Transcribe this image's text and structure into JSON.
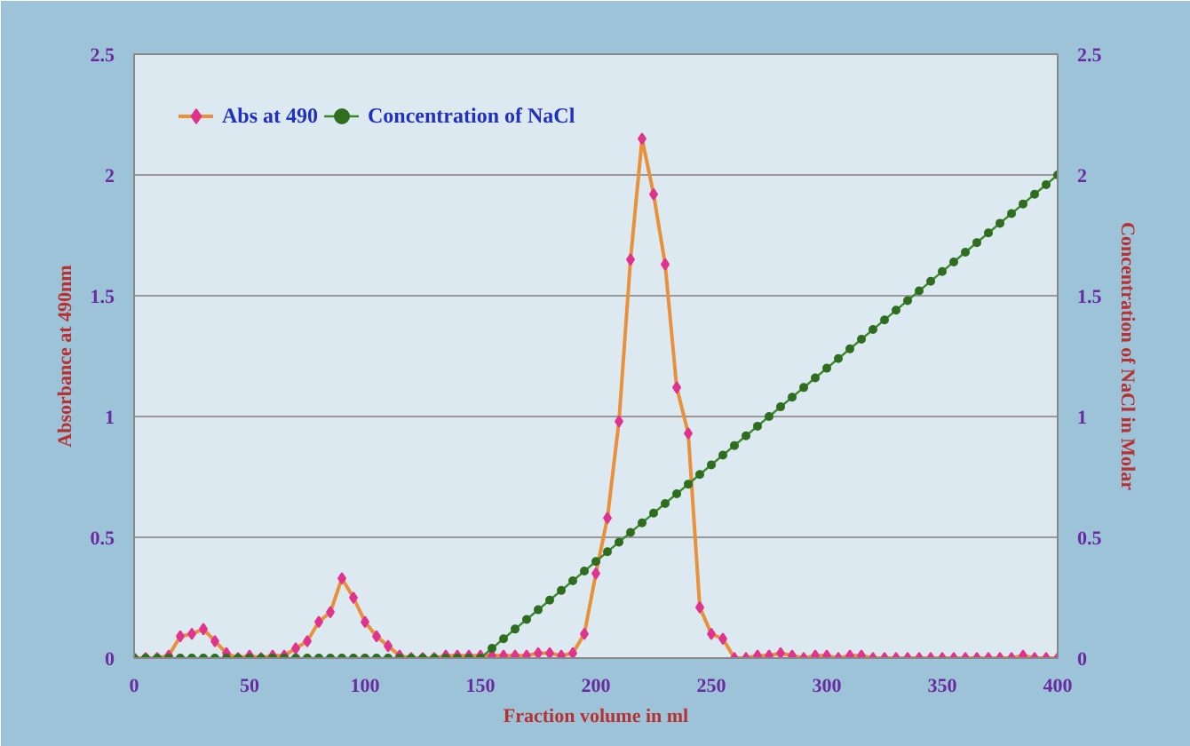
{
  "chart_data": {
    "type": "line",
    "xlabel": "Fraction volume in ml",
    "ylabel": "Absorbance at 490nm",
    "y2label": "Concentration of NaCl in Molar",
    "x": [
      0,
      5,
      10,
      15,
      20,
      25,
      30,
      35,
      40,
      45,
      50,
      55,
      60,
      65,
      70,
      75,
      80,
      85,
      90,
      95,
      100,
      105,
      110,
      115,
      120,
      125,
      130,
      135,
      140,
      145,
      150,
      155,
      160,
      165,
      170,
      175,
      180,
      185,
      190,
      195,
      200,
      205,
      210,
      215,
      220,
      225,
      230,
      235,
      240,
      245,
      250,
      255,
      260,
      265,
      270,
      275,
      280,
      285,
      290,
      295,
      300,
      305,
      310,
      315,
      320,
      325,
      330,
      335,
      340,
      345,
      350,
      355,
      360,
      365,
      370,
      375,
      380,
      385,
      390,
      395,
      400
    ],
    "series": [
      {
        "name": "Abs at 490",
        "color": "#e8913a",
        "marker": "diamond",
        "values": [
          0,
          0,
          0,
          0.01,
          0.09,
          0.1,
          0.12,
          0.07,
          0.02,
          0,
          0.01,
          0,
          0.01,
          0.01,
          0.04,
          0.07,
          0.15,
          0.19,
          0.33,
          0.25,
          0.15,
          0.09,
          0.05,
          0.01,
          0,
          0,
          0,
          0.01,
          0.01,
          0.01,
          0.01,
          0.01,
          0.01,
          0.01,
          0.01,
          0.02,
          0.02,
          0.01,
          0.02,
          0.1,
          0.35,
          0.58,
          0.98,
          1.65,
          2.15,
          1.92,
          1.63,
          1.12,
          0.93,
          0.21,
          0.1,
          0.08,
          0,
          0,
          0.01,
          0.01,
          0.02,
          0.01,
          0,
          0.01,
          0.01,
          0,
          0.01,
          0.01,
          0,
          0,
          0,
          0,
          0,
          0,
          0,
          0,
          0,
          0,
          0,
          0,
          0,
          0.01,
          0,
          0,
          0
        ]
      },
      {
        "name": "Concentration of NaCl",
        "color": "#3a8a2a",
        "marker": "circle",
        "axis": "y2",
        "values": [
          0,
          0,
          0,
          0,
          0,
          0,
          0,
          0,
          0,
          0,
          0,
          0,
          0,
          0,
          0,
          0,
          0,
          0,
          0,
          0,
          0,
          0,
          0,
          0,
          0,
          0,
          0,
          0,
          0,
          0,
          0,
          0.04,
          0.08,
          0.12,
          0.16,
          0.2,
          0.24,
          0.28,
          0.32,
          0.36,
          0.4,
          0.44,
          0.48,
          0.52,
          0.56,
          0.6,
          0.64,
          0.68,
          0.72,
          0.76,
          0.8,
          0.84,
          0.88,
          0.92,
          0.96,
          1,
          1.04,
          1.08,
          1.12,
          1.16,
          1.2,
          1.24,
          1.28,
          1.32,
          1.36,
          1.4,
          1.44,
          1.48,
          1.52,
          1.56,
          1.6,
          1.64,
          1.68,
          1.72,
          1.76,
          1.8,
          1.84,
          1.88,
          1.92,
          1.96,
          2
        ]
      }
    ],
    "xlim": [
      0,
      400
    ],
    "xticks": [
      0,
      50,
      100,
      150,
      200,
      250,
      300,
      350,
      400
    ],
    "ylim": [
      0,
      2.5
    ],
    "yticks": [
      0,
      0.5,
      1,
      1.5,
      2,
      2.5
    ],
    "y2lim": [
      0,
      2.5
    ],
    "y2ticks": [
      0,
      0.5,
      1,
      1.5,
      2,
      2.5
    ],
    "grid": "y",
    "legend": "top left"
  }
}
